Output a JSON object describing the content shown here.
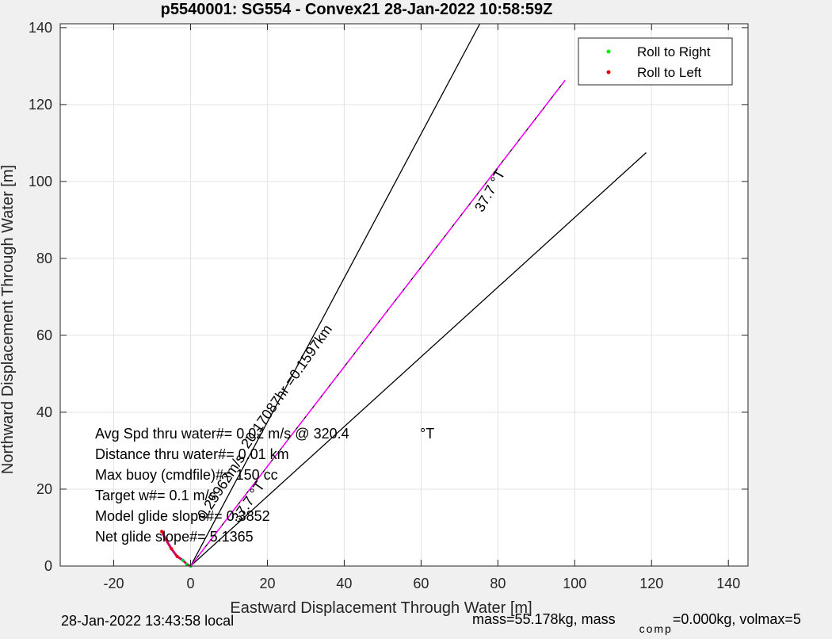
{
  "chart_data": {
    "type": "line",
    "title": "p5540001: SG554 - Convex21 28-Jan-2022 10:58:59Z",
    "xlabel": "Eastward Displacement Through Water [m]",
    "ylabel": "Northward Displacement Through Water [m]",
    "xlim": [
      -34,
      145
    ],
    "ylim": [
      0,
      141
    ],
    "xticks": [
      -20,
      0,
      20,
      40,
      60,
      80,
      100,
      120,
      140
    ],
    "yticks": [
      0,
      20,
      40,
      60,
      80,
      100,
      120,
      140
    ],
    "grid": true,
    "legend": {
      "placement": "top-right",
      "entries": [
        {
          "label": "Roll to Right",
          "color": "#00ee00"
        },
        {
          "label": "Roll to Left",
          "color": "#ee0000"
        }
      ]
    },
    "lines": [
      {
        "kind": "black",
        "points": [
          [
            0,
            0
          ],
          [
            75.3,
            141
          ]
        ]
      },
      {
        "kind": "black",
        "points": [
          [
            0,
            0
          ],
          [
            118.6,
            107.5
          ]
        ]
      },
      {
        "kind": "black",
        "points": [
          [
            0,
            0
          ],
          [
            97.5,
            126.3
          ]
        ]
      },
      {
        "kind": "magenta-dashed",
        "points": [
          [
            0,
            0
          ],
          [
            97.5,
            126.3
          ]
        ]
      }
    ],
    "track": [
      [
        -7.5,
        9
      ],
      [
        -6.5,
        7
      ],
      [
        -5,
        4.5
      ],
      [
        -3.5,
        2.5
      ],
      [
        -2,
        1.5
      ],
      [
        -1,
        0.5
      ],
      [
        0,
        0
      ]
    ],
    "annotations": [
      {
        "text": "37.7 °T",
        "x": 79,
        "y": 97,
        "rotation": -60
      },
      {
        "text": "20.17087hr =0.1597km",
        "x": 26,
        "y": 46,
        "rotation": -55
      },
      {
        "text": "37.7 °T",
        "x": 16,
        "y": 16,
        "rotation": -55
      },
      {
        "text": "0.25962m/s",
        "x": 9,
        "y": 20,
        "rotation": -57
      }
    ],
    "info_lines": [
      {
        "label": "Avg Spd thru water#=",
        "value": " 0.02 m/s @ 320.4",
        "suffix": "°T"
      },
      {
        "label": "Distance thru water#=",
        "value": " 0.01 km"
      },
      {
        "label": "Max buoy (cmdfile)#=",
        "value": " 150 cc"
      },
      {
        "label": "Target w#=",
        "value": " 0.1 m/s"
      },
      {
        "label": "Model glide slope#=",
        "value": " 0.3852"
      },
      {
        "label": "Net glide slope#=",
        "value": " 5.1365"
      }
    ]
  },
  "footer": {
    "local_time": "28-Jan-2022 13:43:58 local",
    "mass": "mass=55.178kg, mass",
    "comp_sub": "comp",
    "volmax": "=0.000kg, volmax=5"
  }
}
